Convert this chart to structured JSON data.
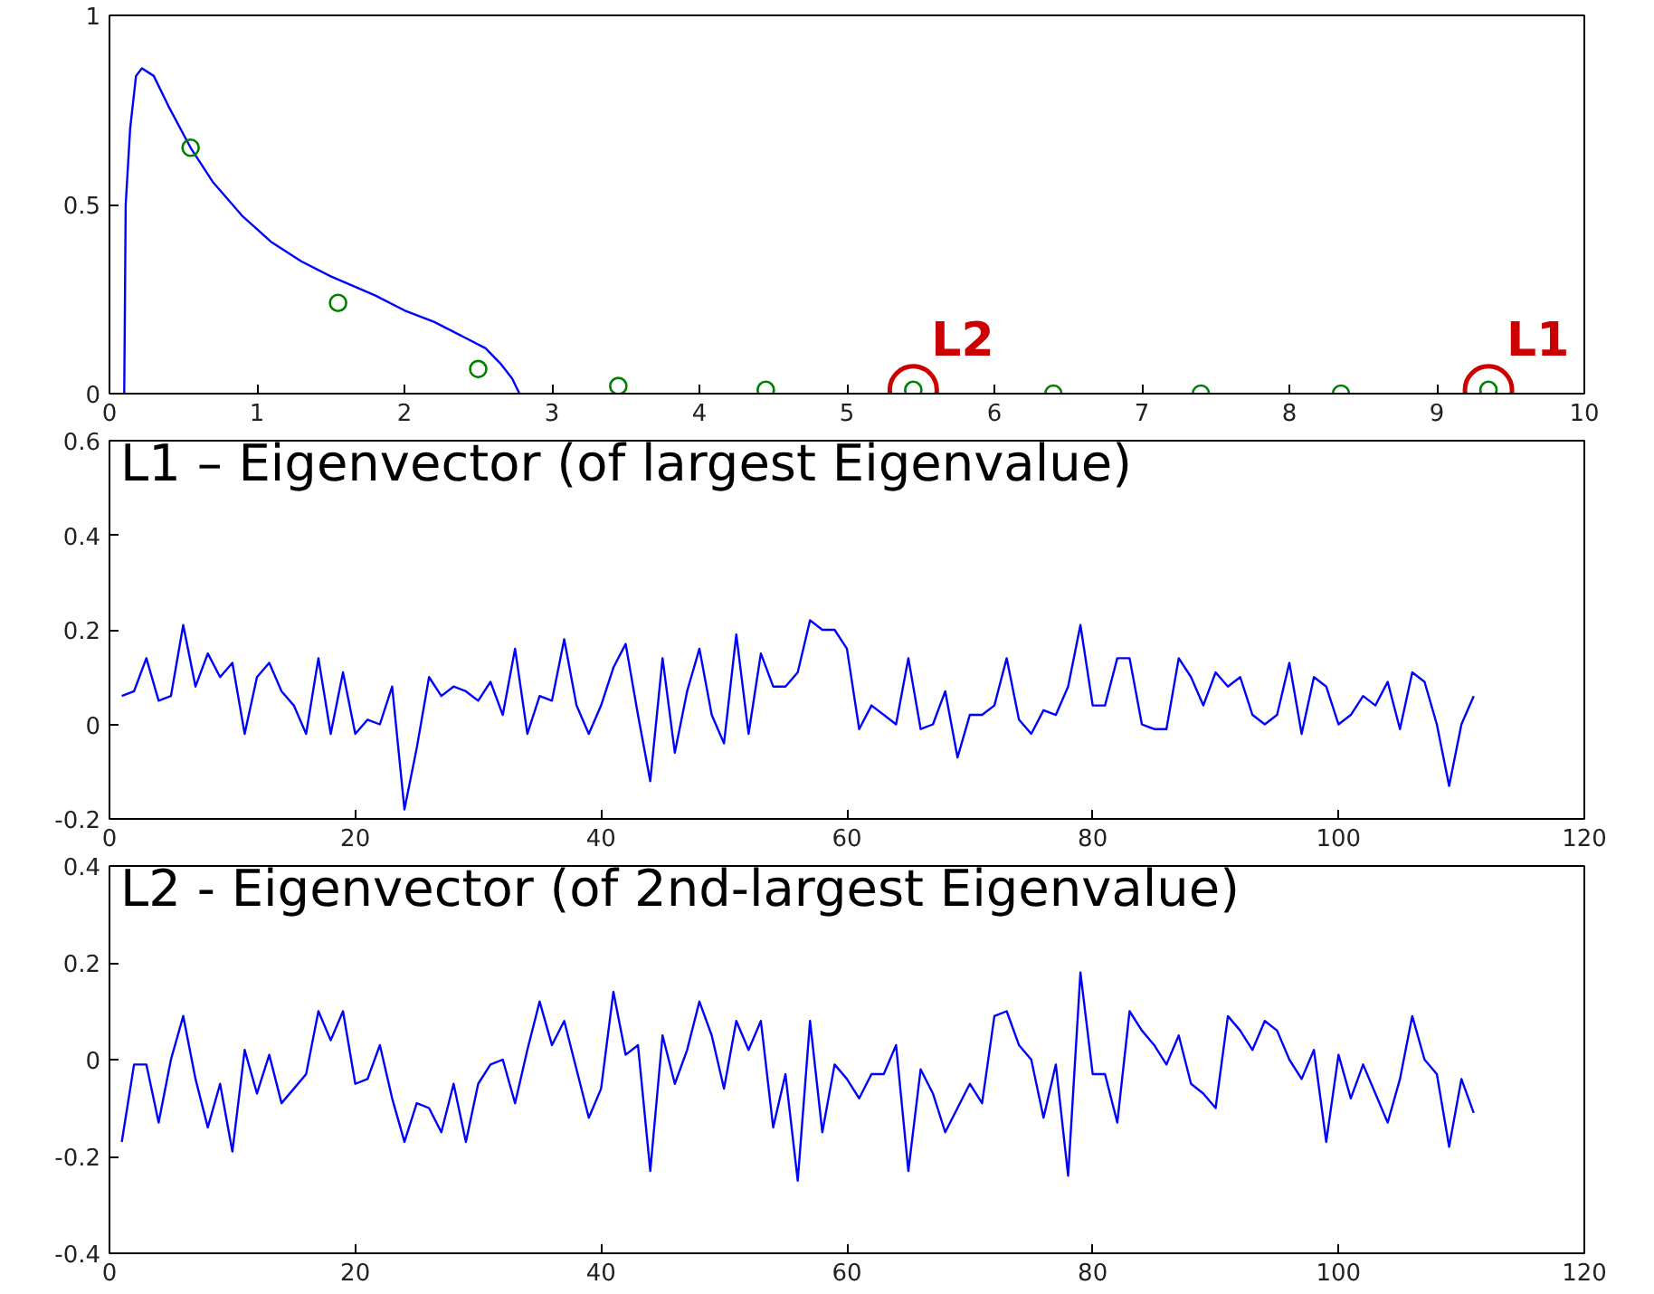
{
  "chart_data": [
    {
      "type": "line",
      "xlim": [
        0,
        10
      ],
      "xticks": [
        0,
        1,
        2,
        3,
        4,
        5,
        6,
        7,
        8,
        9,
        10
      ],
      "ylim": [
        0,
        1
      ],
      "yticks": [
        0,
        0.5,
        1
      ],
      "grid": false,
      "series": [
        {
          "type": "line",
          "color": "#0000ff",
          "x": [
            0.1,
            0.11,
            0.14,
            0.18,
            0.22,
            0.3,
            0.4,
            0.55,
            0.7,
            0.9,
            1.1,
            1.3,
            1.5,
            1.8,
            2.0,
            2.2,
            2.4,
            2.55,
            2.65,
            2.73,
            2.78
          ],
          "values": [
            0,
            0.5,
            0.7,
            0.84,
            0.86,
            0.84,
            0.76,
            0.65,
            0.56,
            0.47,
            0.4,
            0.35,
            0.31,
            0.26,
            0.22,
            0.19,
            0.15,
            0.12,
            0.08,
            0.04,
            0
          ]
        },
        {
          "type": "scatter",
          "marker": "circle",
          "color": "#008000",
          "x": [
            0.55,
            1.55,
            2.5,
            3.45,
            4.45,
            5.45,
            6.4,
            7.4,
            8.35,
            9.35
          ],
          "values": [
            0.65,
            0.24,
            0.065,
            0.02,
            0.01,
            0.01,
            0,
            0,
            0,
            0.01
          ]
        }
      ],
      "annotations": [
        {
          "text": "L2",
          "x": 5.45,
          "y": 0.01
        },
        {
          "text": "L1",
          "x": 9.35,
          "y": 0.01
        }
      ]
    },
    {
      "type": "line",
      "title": "L1 – Eigenvector (of largest Eigenvalue)",
      "xlim": [
        0,
        120
      ],
      "xticks": [
        0,
        20,
        40,
        60,
        80,
        100,
        120
      ],
      "ylim": [
        -0.2,
        0.6
      ],
      "yticks": [
        -0.2,
        0,
        0.2,
        0.4,
        0.6
      ],
      "grid": false,
      "x": [
        1,
        2,
        3,
        4,
        5,
        6,
        7,
        8,
        9,
        10,
        11,
        12,
        13,
        14,
        15,
        16,
        17,
        18,
        19,
        20,
        21,
        22,
        23,
        24,
        25,
        26,
        27,
        28,
        29,
        30,
        31,
        32,
        33,
        34,
        35,
        36,
        37,
        38,
        39,
        40,
        41,
        42,
        43,
        44,
        45,
        46,
        47,
        48,
        49,
        50,
        51,
        52,
        53,
        54,
        55,
        56,
        57,
        58,
        59,
        60,
        61,
        62,
        63,
        64,
        65,
        66,
        67,
        68,
        69,
        70,
        71,
        72,
        73,
        74,
        75,
        76,
        77,
        78,
        79,
        80,
        81,
        82,
        83,
        84,
        85,
        86,
        87,
        88,
        89,
        90,
        91,
        92,
        93,
        94,
        95,
        96,
        97,
        98,
        99,
        100,
        101,
        102,
        103,
        104,
        105,
        106,
        107,
        108,
        109,
        110,
        111
      ],
      "series": [
        {
          "color": "#0000ff",
          "values": [
            0.06,
            0.07,
            0.14,
            0.05,
            0.06,
            0.21,
            0.08,
            0.15,
            0.1,
            0.13,
            -0.02,
            0.1,
            0.13,
            0.07,
            0.04,
            -0.02,
            0.14,
            -0.02,
            0.11,
            -0.02,
            0.01,
            0.0,
            0.08,
            -0.18,
            -0.05,
            0.1,
            0.06,
            0.08,
            0.07,
            0.05,
            0.09,
            0.02,
            0.16,
            -0.02,
            0.06,
            0.05,
            0.18,
            0.04,
            -0.02,
            0.04,
            0.12,
            0.17,
            0.02,
            -0.12,
            0.14,
            -0.06,
            0.07,
            0.16,
            0.02,
            -0.04,
            0.19,
            -0.02,
            0.15,
            0.08,
            0.08,
            0.11,
            0.22,
            0.2,
            0.2,
            0.16,
            -0.01,
            0.04,
            0.02,
            0.0,
            0.14,
            -0.01,
            0.0,
            0.07,
            -0.07,
            0.02,
            0.02,
            0.04,
            0.14,
            0.01,
            -0.02,
            0.03,
            0.02,
            0.08,
            0.21,
            0.04,
            0.04,
            0.14,
            0.14,
            0.0,
            -0.01,
            -0.01,
            0.14,
            0.1,
            0.04,
            0.11,
            0.08,
            0.1,
            0.02,
            0.0,
            0.02,
            0.13,
            -0.02,
            0.1,
            0.08,
            0.0,
            0.02,
            0.06,
            0.04,
            0.09,
            -0.01,
            0.11,
            0.09,
            0.0,
            -0.13,
            0.0,
            0.06
          ]
        }
      ]
    },
    {
      "type": "line",
      "title": "L2 - Eigenvector (of 2nd-largest Eigenvalue)",
      "xlim": [
        0,
        120
      ],
      "xticks": [
        0,
        20,
        40,
        60,
        80,
        100,
        120
      ],
      "ylim": [
        -0.4,
        0.4
      ],
      "yticks": [
        -0.4,
        -0.2,
        0,
        0.2,
        0.4
      ],
      "grid": false,
      "x": [
        1,
        2,
        3,
        4,
        5,
        6,
        7,
        8,
        9,
        10,
        11,
        12,
        13,
        14,
        15,
        16,
        17,
        18,
        19,
        20,
        21,
        22,
        23,
        24,
        25,
        26,
        27,
        28,
        29,
        30,
        31,
        32,
        33,
        34,
        35,
        36,
        37,
        38,
        39,
        40,
        41,
        42,
        43,
        44,
        45,
        46,
        47,
        48,
        49,
        50,
        51,
        52,
        53,
        54,
        55,
        56,
        57,
        58,
        59,
        60,
        61,
        62,
        63,
        64,
        65,
        66,
        67,
        68,
        69,
        70,
        71,
        72,
        73,
        74,
        75,
        76,
        77,
        78,
        79,
        80,
        81,
        82,
        83,
        84,
        85,
        86,
        87,
        88,
        89,
        90,
        91,
        92,
        93,
        94,
        95,
        96,
        97,
        98,
        99,
        100,
        101,
        102,
        103,
        104,
        105,
        106,
        107,
        108,
        109,
        110,
        111
      ],
      "series": [
        {
          "color": "#0000ff",
          "values": [
            -0.17,
            -0.01,
            -0.01,
            -0.13,
            0.0,
            0.09,
            -0.04,
            -0.14,
            -0.05,
            -0.19,
            0.02,
            -0.07,
            0.01,
            -0.09,
            -0.06,
            -0.03,
            0.1,
            0.04,
            0.1,
            -0.05,
            -0.04,
            0.03,
            -0.08,
            -0.17,
            -0.09,
            -0.1,
            -0.15,
            -0.05,
            -0.17,
            -0.05,
            -0.01,
            0.0,
            -0.09,
            0.02,
            0.12,
            0.03,
            0.08,
            -0.02,
            -0.12,
            -0.06,
            0.14,
            0.01,
            0.03,
            -0.23,
            0.05,
            -0.05,
            0.02,
            0.12,
            0.05,
            -0.06,
            0.08,
            0.02,
            0.08,
            -0.14,
            -0.03,
            -0.25,
            0.08,
            -0.15,
            -0.01,
            -0.04,
            -0.08,
            -0.03,
            -0.03,
            0.03,
            -0.23,
            -0.02,
            -0.07,
            -0.15,
            -0.1,
            -0.05,
            -0.09,
            0.09,
            0.1,
            0.03,
            0.0,
            -0.12,
            -0.01,
            -0.24,
            0.18,
            -0.03,
            -0.03,
            -0.13,
            0.1,
            0.06,
            0.03,
            -0.01,
            0.05,
            -0.05,
            -0.07,
            -0.1,
            0.09,
            0.06,
            0.02,
            0.08,
            0.06,
            0.0,
            -0.04,
            0.02,
            -0.17,
            0.01,
            -0.08,
            -0.01,
            -0.07,
            -0.13,
            -0.04,
            0.09,
            0.0,
            -0.03,
            -0.18,
            -0.04,
            -0.11
          ]
        }
      ]
    }
  ]
}
